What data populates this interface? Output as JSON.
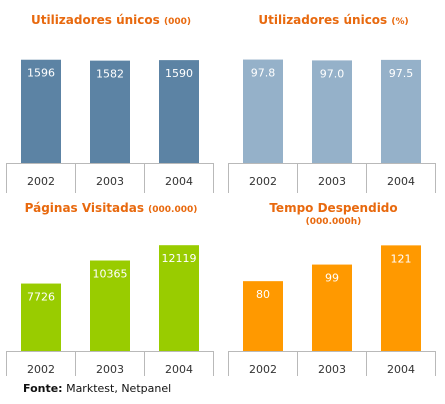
{
  "chart_data": [
    {
      "type": "bar",
      "title": "Utilizadores únicos",
      "unit": "(000)",
      "categories": [
        "2002",
        "2003",
        "2004"
      ],
      "values": [
        1596,
        1582,
        1590
      ],
      "labels": [
        "1596",
        "1582",
        "1590"
      ],
      "color": "#5c83a4",
      "ylim": [
        0,
        1700
      ]
    },
    {
      "type": "bar",
      "title": "Utilizadores únicos",
      "unit": "(%)",
      "categories": [
        "2002",
        "2003",
        "2004"
      ],
      "values": [
        97.8,
        97.0,
        97.5
      ],
      "labels": [
        "97.8",
        "97.0",
        "97.5"
      ],
      "color": "#95b1c9",
      "ylim": [
        0,
        104
      ]
    },
    {
      "type": "bar",
      "title": "Páginas Visitadas",
      "unit": "(000.000)",
      "categories": [
        "2002",
        "2003",
        "2004"
      ],
      "values": [
        7726,
        10365,
        12119
      ],
      "labels": [
        "7726",
        "10365",
        "12119"
      ],
      "color": "#99cc00",
      "ylim": [
        0,
        12600
      ]
    },
    {
      "type": "bar",
      "title": "Tempo Despendido",
      "unit": "(000.000h)",
      "categories": [
        "2002",
        "2003",
        "2004"
      ],
      "values": [
        80,
        99,
        121
      ],
      "labels": [
        "80",
        "99",
        "121"
      ],
      "color": "#ff9900",
      "ylim": [
        0,
        126
      ]
    }
  ],
  "source": {
    "label": "Fonte:",
    "text": "Marktest, Netpanel"
  }
}
